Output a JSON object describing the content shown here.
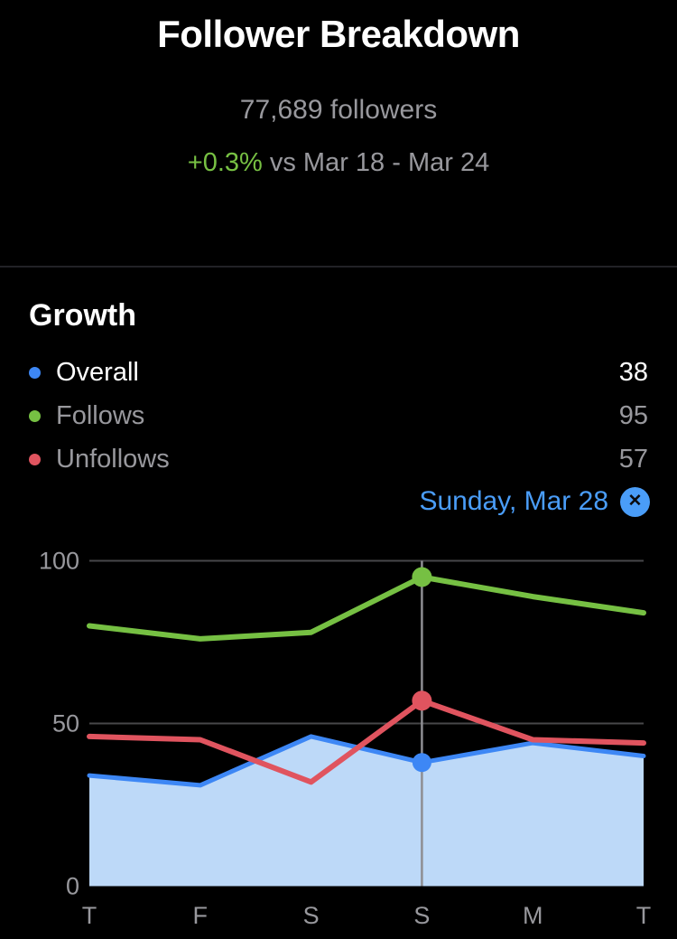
{
  "header": {
    "title": "Follower Breakdown",
    "followers_count": "77,689 followers",
    "delta": "+0.3%",
    "delta_context": " vs Mar 18 - Mar 24",
    "delta_color": "#77c043"
  },
  "growth": {
    "heading": "Growth",
    "legend": [
      {
        "label": "Overall",
        "value": "38",
        "color": "#3d87f5",
        "emphasis": true
      },
      {
        "label": "Follows",
        "value": "95",
        "color": "#76c043",
        "emphasis": false
      },
      {
        "label": "Unfollows",
        "value": "57",
        "color": "#e0545f",
        "emphasis": false
      }
    ],
    "selected_day": "Sunday, Mar 28",
    "selected_day_color": "#4a9df8",
    "close_icon": "✕"
  },
  "chart_data": {
    "type": "area",
    "categories": [
      "T",
      "F",
      "S",
      "S",
      "M",
      "T"
    ],
    "series": [
      {
        "name": "Overall",
        "style": "area",
        "color": "#3d87f5",
        "fill": "#bdd9f8",
        "values": [
          34,
          31,
          46,
          38,
          44,
          40
        ]
      },
      {
        "name": "Unfollows",
        "style": "line",
        "color": "#e0545f",
        "values": [
          46,
          45,
          32,
          57,
          45,
          44
        ]
      },
      {
        "name": "Follows",
        "style": "line",
        "color": "#76c043",
        "values": [
          80,
          76,
          78,
          95,
          89,
          84
        ]
      }
    ],
    "highlight": {
      "index": 3,
      "day": "Sunday, Mar 28",
      "values": {
        "Overall": 38,
        "Follows": 95,
        "Unfollows": 57
      }
    },
    "yticks": [
      0,
      50,
      100
    ],
    "ylim": [
      0,
      100
    ],
    "grid": "horizontal",
    "grid_color": "#47474a",
    "axis_color": "#98989d",
    "indicator_color": "#8e8e93",
    "title": "Growth",
    "xlabel": "",
    "ylabel": ""
  }
}
